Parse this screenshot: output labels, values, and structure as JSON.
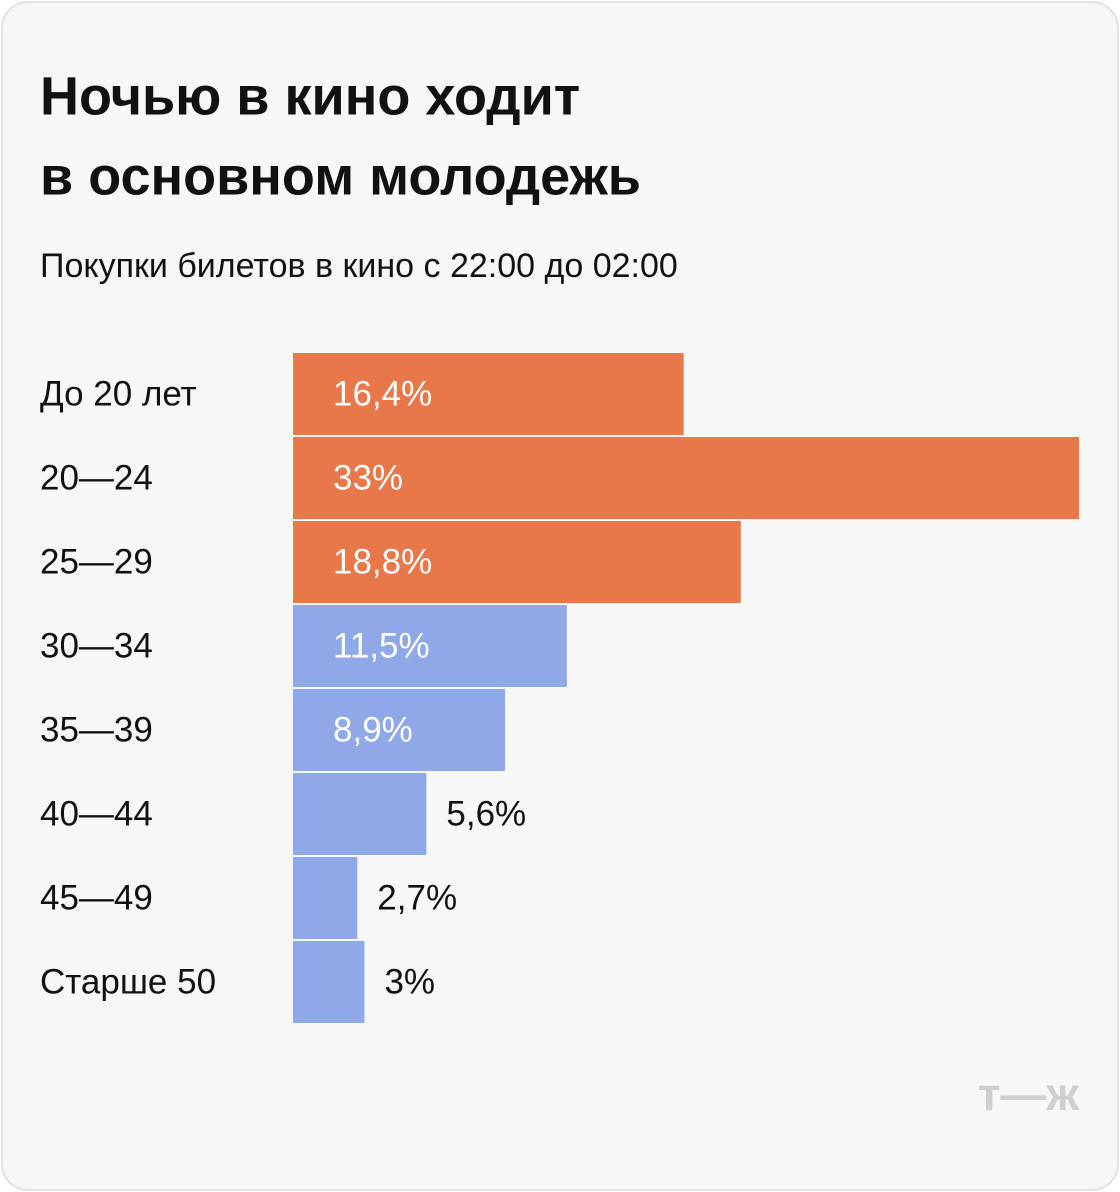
{
  "chart_data": {
    "type": "bar",
    "orientation": "horizontal",
    "title": [
      "Ночью в кино ходит",
      "в основном молодежь"
    ],
    "subtitle": "Покупки билетов в кино с 22:00 до 02:00",
    "categories": [
      "До 20 лет",
      "20—24",
      "25—29",
      "30—34",
      "35—39",
      "40—44",
      "45—49",
      "Старше 50"
    ],
    "values": [
      16.4,
      33,
      18.8,
      11.5,
      8.9,
      5.6,
      2.7,
      3
    ],
    "value_labels": [
      "16,4%",
      "33%",
      "18,8%",
      "11,5%",
      "8,9%",
      "5,6%",
      "2,7%",
      "3%"
    ],
    "colors": [
      "#e8774a",
      "#e8774a",
      "#e8774a",
      "#8fa8e8",
      "#8fa8e8",
      "#8fa8e8",
      "#8fa8e8",
      "#8fa8e8"
    ],
    "logo": "т—ж"
  }
}
